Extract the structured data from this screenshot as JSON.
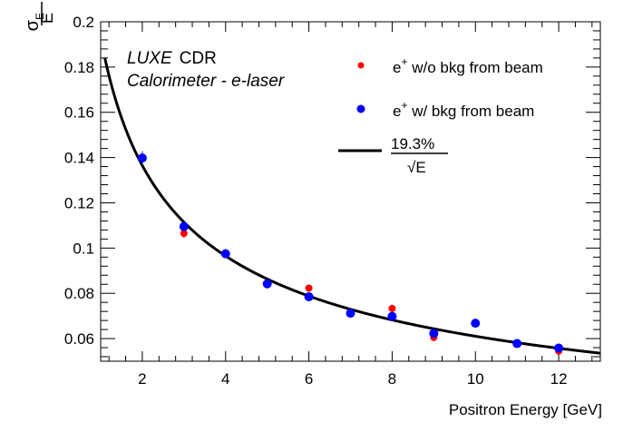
{
  "chart_data": {
    "type": "scatter",
    "xlabel": "Positron Energy [GeV]",
    "ylabel": {
      "main": "σ",
      "sub": "E",
      "denominator": "E"
    },
    "xlim": [
      1,
      13
    ],
    "ylim": [
      0.05,
      0.2
    ],
    "x_ticks": [
      2,
      4,
      6,
      8,
      10,
      12
    ],
    "x_tick_labels": [
      "2",
      "4",
      "6",
      "8",
      "10",
      "12"
    ],
    "y_ticks": [
      0.06,
      0.08,
      0.1,
      0.12,
      0.14,
      0.16,
      0.18,
      0.2
    ],
    "y_tick_labels": [
      "0.06",
      "0.08",
      "0.1",
      "0.12",
      "0.14",
      "0.16",
      "0.18",
      "0.2"
    ],
    "annotation": {
      "line1_italic": "LUXE",
      "line1_rest": "CDR",
      "line2": "Calorimeter - e-laser"
    },
    "series": [
      {
        "name": "e+ w/o bkg from beam",
        "color": "#ff0000",
        "marker": "circle",
        "x": [
          2,
          3,
          4,
          5,
          6,
          7,
          8,
          9,
          10,
          11,
          12
        ],
        "y": [
          0.1395,
          0.1065,
          0.0975,
          0.0845,
          0.0823,
          0.0715,
          0.0733,
          0.0605,
          0.0668,
          0.0575,
          0.0545
        ],
        "yerr": [
          0.002,
          0.002,
          0.002,
          0.0015,
          0.0015,
          0.0012,
          0.0012,
          0.0012,
          0.0012,
          0.001,
          0.001
        ]
      },
      {
        "name": "e+ w/ bkg from beam",
        "color": "#0000ff",
        "marker": "circle",
        "x": [
          2,
          3,
          4,
          5,
          6,
          7,
          8,
          9,
          10,
          11,
          12
        ],
        "y": [
          0.1398,
          0.1095,
          0.0975,
          0.0842,
          0.0785,
          0.0712,
          0.0698,
          0.0623,
          0.0668,
          0.0578,
          0.0558
        ],
        "yerr": [
          0.003,
          0.002,
          0.002,
          0.0015,
          0.0015,
          0.0012,
          0.0012,
          0.0012,
          0.0012,
          0.001,
          0.001
        ]
      }
    ],
    "fit": {
      "name": "19.3% / √E",
      "numerator_label": "19.3%",
      "denominator_label": "√E",
      "color": "#000000",
      "coefficient": 0.193,
      "x_range": [
        1.1,
        13
      ]
    },
    "legend": {
      "position": "top-right",
      "entry1_main": "e",
      "entry1_sup": "+",
      "entry1_rest": " w/o bkg from beam",
      "entry2_main": "e",
      "entry2_sup": "+",
      "entry2_rest": " w/ bkg from beam"
    },
    "grid": false
  }
}
